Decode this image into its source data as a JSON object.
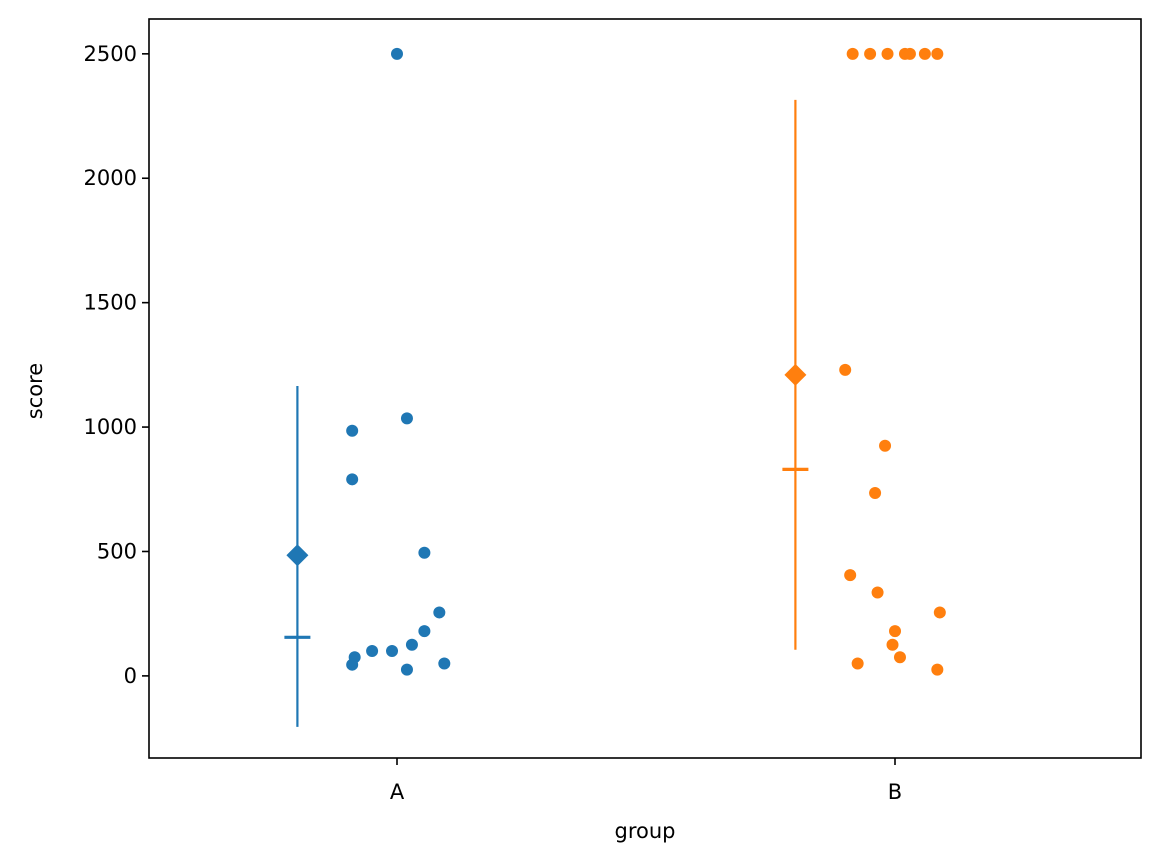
{
  "chart_data": {
    "type": "scatter",
    "xlabel": "group",
    "ylabel": "score",
    "categories": [
      "A",
      "B"
    ],
    "ylim": [
      -330,
      2640
    ],
    "yticks": [
      0,
      500,
      1000,
      1500,
      2000,
      2500
    ],
    "grid": false,
    "series": [
      {
        "category": "A",
        "color": "#1f77b4",
        "points": [
          {
            "x": 0.0,
            "y": 2500
          },
          {
            "x": 0.02,
            "y": 1035
          },
          {
            "x": -0.09,
            "y": 985
          },
          {
            "x": -0.09,
            "y": 790
          },
          {
            "x": 0.055,
            "y": 495
          },
          {
            "x": 0.085,
            "y": 255
          },
          {
            "x": 0.055,
            "y": 180
          },
          {
            "x": 0.03,
            "y": 125
          },
          {
            "x": -0.05,
            "y": 100
          },
          {
            "x": -0.01,
            "y": 100
          },
          {
            "x": -0.085,
            "y": 75
          },
          {
            "x": 0.095,
            "y": 50
          },
          {
            "x": -0.09,
            "y": 45
          },
          {
            "x": 0.02,
            "y": 25
          }
        ],
        "mean": 485,
        "median": 155,
        "errorbar": [
          -205,
          1165
        ]
      },
      {
        "category": "B",
        "color": "#ff7f0e",
        "points": [
          {
            "x": -0.085,
            "y": 2500
          },
          {
            "x": -0.05,
            "y": 2500
          },
          {
            "x": -0.015,
            "y": 2500
          },
          {
            "x": 0.02,
            "y": 2500
          },
          {
            "x": 0.03,
            "y": 2500
          },
          {
            "x": 0.06,
            "y": 2500
          },
          {
            "x": 0.085,
            "y": 2500
          },
          {
            "x": -0.1,
            "y": 1230
          },
          {
            "x": -0.02,
            "y": 925
          },
          {
            "x": -0.04,
            "y": 735
          },
          {
            "x": -0.09,
            "y": 405
          },
          {
            "x": -0.035,
            "y": 335
          },
          {
            "x": 0.09,
            "y": 255
          },
          {
            "x": 0.0,
            "y": 180
          },
          {
            "x": -0.005,
            "y": 125
          },
          {
            "x": 0.01,
            "y": 75
          },
          {
            "x": -0.075,
            "y": 50
          },
          {
            "x": 0.085,
            "y": 25
          }
        ],
        "mean": 1210,
        "median": 830,
        "errorbar": [
          105,
          2315
        ]
      }
    ]
  }
}
